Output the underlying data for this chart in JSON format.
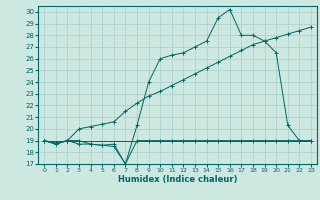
{
  "xlabel": "Humidex (Indice chaleur)",
  "bg_color": "#cce8e0",
  "grid_color": "#aacccc",
  "line_color": "#006666",
  "xlim": [
    -0.5,
    23.5
  ],
  "ylim": [
    17,
    30.5
  ],
  "yticks": [
    17,
    18,
    19,
    20,
    21,
    22,
    23,
    24,
    25,
    26,
    27,
    28,
    29,
    30
  ],
  "xticks": [
    0,
    1,
    2,
    3,
    4,
    5,
    6,
    7,
    8,
    9,
    10,
    11,
    12,
    13,
    14,
    15,
    16,
    17,
    18,
    19,
    20,
    21,
    22,
    23
  ],
  "series1_y": [
    19,
    19,
    19,
    19,
    19,
    19,
    19,
    19,
    19,
    19,
    19,
    19,
    19,
    19,
    19,
    19,
    19,
    19,
    19,
    19,
    19,
    19,
    19,
    19
  ],
  "series2_y": [
    19,
    18.7,
    19,
    18.7,
    18.7,
    18.6,
    18.7,
    17.0,
    19.0,
    19.0,
    19.0,
    19.0,
    19.0,
    19.0,
    19.0,
    19.0,
    19.0,
    19.0,
    19.0,
    19.0,
    19.0,
    19.0,
    19.0,
    19.0
  ],
  "series3_y": [
    19.0,
    18.8,
    19.0,
    20.0,
    20.2,
    20.4,
    20.6,
    21.5,
    22.2,
    22.8,
    23.2,
    23.7,
    24.2,
    24.7,
    25.2,
    25.7,
    26.2,
    26.7,
    27.2,
    27.5,
    27.8,
    28.1,
    28.4,
    28.7
  ],
  "series4_y": [
    19.0,
    18.7,
    19.0,
    19.0,
    18.7,
    18.6,
    18.5,
    17.0,
    20.3,
    24.0,
    26.0,
    26.3,
    26.5,
    27.0,
    27.5,
    29.5,
    30.2,
    28.0,
    28.0,
    27.5,
    26.5,
    20.3,
    19.0,
    19.0
  ]
}
